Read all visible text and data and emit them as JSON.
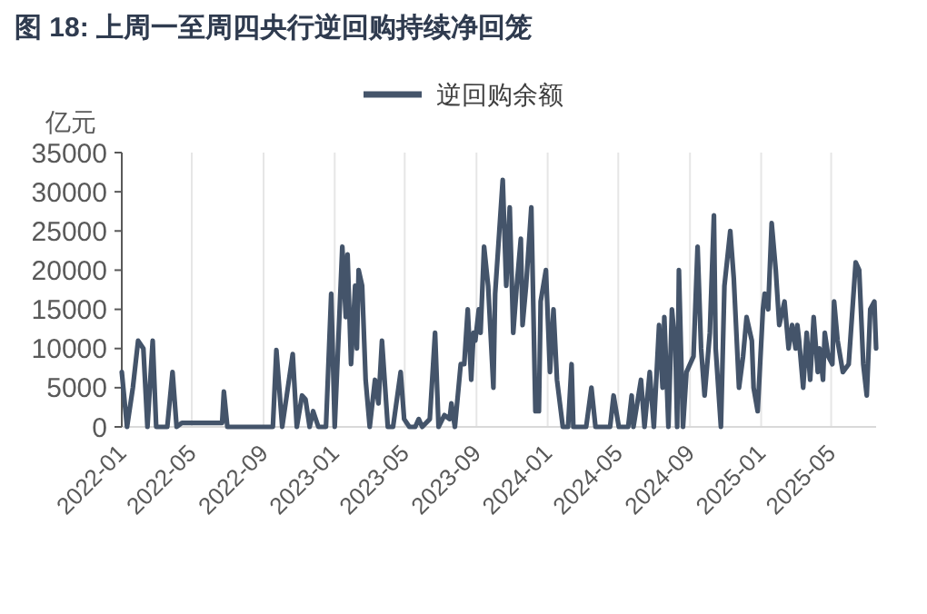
{
  "chart_data": {
    "type": "line",
    "title": "图 18:  上周一至周四央行逆回购持续净回笼",
    "ylabel": "亿元",
    "legend": "top",
    "grid": "x",
    "xlim": [
      "2022-01-01",
      "2025-07-17"
    ],
    "xticks": [
      "2022-01",
      "2022-05",
      "2022-09",
      "2023-01",
      "2023-05",
      "2023-09",
      "2024-01",
      "2024-05",
      "2024-09",
      "2025-01",
      "2025-05"
    ],
    "ylim": [
      0,
      35000
    ],
    "yticks": [
      0,
      5000,
      10000,
      15000,
      20000,
      25000,
      30000,
      35000
    ],
    "series": [
      {
        "name": "逆回购余额",
        "color": "#44546a",
        "x": [
          "2022-01-01",
          "2022-01-10",
          "2022-01-20",
          "2022-01-29",
          "2022-02-07",
          "2022-02-14",
          "2022-02-23",
          "2022-03-01",
          "2022-03-20",
          "2022-03-29",
          "2022-04-05",
          "2022-04-14",
          "2022-06-22",
          "2022-06-25",
          "2022-07-01",
          "2022-09-17",
          "2022-09-23",
          "2022-10-03",
          "2022-10-21",
          "2022-10-28",
          "2022-11-06",
          "2022-11-12",
          "2022-11-19",
          "2022-11-25",
          "2022-12-04",
          "2022-12-17",
          "2022-12-26",
          "2023-01-01",
          "2023-01-14",
          "2023-01-20",
          "2023-01-23",
          "2023-01-29",
          "2023-02-05",
          "2023-02-08",
          "2023-02-11",
          "2023-02-17",
          "2023-02-23",
          "2023-03-02",
          "2023-03-11",
          "2023-03-17",
          "2023-03-23",
          "2023-04-02",
          "2023-04-11",
          "2023-04-24",
          "2023-04-30",
          "2023-05-09",
          "2023-05-19",
          "2023-05-25",
          "2023-05-31",
          "2023-06-13",
          "2023-06-22",
          "2023-06-28",
          "2023-07-08",
          "2023-07-17",
          "2023-07-20",
          "2023-07-26",
          "2023-08-05",
          "2023-08-11",
          "2023-08-17",
          "2023-08-23",
          "2023-08-27",
          "2023-08-30",
          "2023-09-05",
          "2023-09-08",
          "2023-09-14",
          "2023-09-21",
          "2023-09-30",
          "2023-10-03",
          "2023-10-16",
          "2023-10-22",
          "2023-10-28",
          "2023-11-03",
          "2023-11-09",
          "2023-11-16",
          "2023-11-19",
          "2023-11-25",
          "2023-12-04",
          "2023-12-11",
          "2023-12-17",
          "2023-12-20",
          "2023-12-29",
          "2024-01-05",
          "2024-01-11",
          "2024-01-17",
          "2024-01-27",
          "2024-02-05",
          "2024-02-11",
          "2024-02-14",
          "2024-03-07",
          "2024-03-16",
          "2024-03-23",
          "2024-04-17",
          "2024-04-23",
          "2024-05-02",
          "2024-05-18",
          "2024-05-24",
          "2024-05-27",
          "2024-06-09",
          "2024-06-15",
          "2024-06-24",
          "2024-07-01",
          "2024-07-10",
          "2024-07-16",
          "2024-07-19",
          "2024-07-26",
          "2024-08-01",
          "2024-08-07",
          "2024-08-10",
          "2024-08-13",
          "2024-08-20",
          "2024-08-26",
          "2024-09-07",
          "2024-09-14",
          "2024-09-20",
          "2024-09-26",
          "2024-10-05",
          "2024-10-12",
          "2024-10-15",
          "2024-10-24",
          "2024-10-30",
          "2024-11-09",
          "2024-11-15",
          "2024-11-24",
          "2024-12-01",
          "2024-12-07",
          "2024-12-16",
          "2024-12-19",
          "2024-12-26",
          "2025-01-04",
          "2025-01-07",
          "2025-01-13",
          "2025-01-19",
          "2025-01-26",
          "2025-02-01",
          "2025-02-10",
          "2025-02-17",
          "2025-02-23",
          "2025-03-01",
          "2025-03-04",
          "2025-03-07",
          "2025-03-14",
          "2025-03-20",
          "2025-03-26",
          "2025-04-01",
          "2025-04-08",
          "2025-04-11",
          "2025-04-17",
          "2025-04-20",
          "2025-04-26",
          "2025-05-03",
          "2025-05-06",
          "2025-05-12",
          "2025-05-21",
          "2025-05-31",
          "2025-06-12",
          "2025-06-18",
          "2025-06-25",
          "2025-07-01",
          "2025-07-07",
          "2025-07-14",
          "2025-07-17"
        ],
        "values": [
          7000,
          0,
          5000,
          11000,
          10000,
          0,
          11000,
          0,
          0,
          7000,
          0,
          500,
          500,
          4500,
          0,
          0,
          9800,
          0,
          9300,
          0,
          4000,
          3500,
          0,
          2000,
          0,
          0,
          17000,
          0,
          23000,
          14000,
          22000,
          8000,
          18000,
          10000,
          20000,
          18000,
          6000,
          0,
          6000,
          3000,
          11000,
          0,
          0,
          7000,
          1000,
          0,
          0,
          1000,
          0,
          1000,
          12000,
          0,
          1500,
          1000,
          3000,
          0,
          8000,
          8000,
          15000,
          6000,
          12000,
          11000,
          15000,
          12000,
          23000,
          18000,
          5000,
          17000,
          31500,
          18000,
          28000,
          12000,
          18000,
          24000,
          13000,
          18000,
          28000,
          2000,
          2000,
          16000,
          20000,
          7000,
          15000,
          6000,
          0,
          0,
          8000,
          0,
          0,
          5000,
          0,
          0,
          4000,
          0,
          0,
          4000,
          0,
          6000,
          0,
          7000,
          0,
          13000,
          5000,
          14000,
          0,
          15000,
          10000,
          0,
          20000,
          0,
          7000,
          9000,
          23000,
          10000,
          4000,
          12000,
          27000,
          10000,
          0,
          18000,
          25000,
          19000,
          5000,
          9000,
          14000,
          11000,
          5000,
          2000,
          15000,
          17000,
          15000,
          26000,
          20000,
          13000,
          16000,
          10000,
          13000,
          10000,
          13000,
          11000,
          5000,
          12000,
          6000,
          14000,
          7000,
          10000,
          6000,
          12000,
          9000,
          8000,
          16000,
          11000,
          7000,
          8000,
          21000,
          20000,
          8000,
          4000,
          15000,
          16000,
          10000
        ]
      }
    ]
  }
}
